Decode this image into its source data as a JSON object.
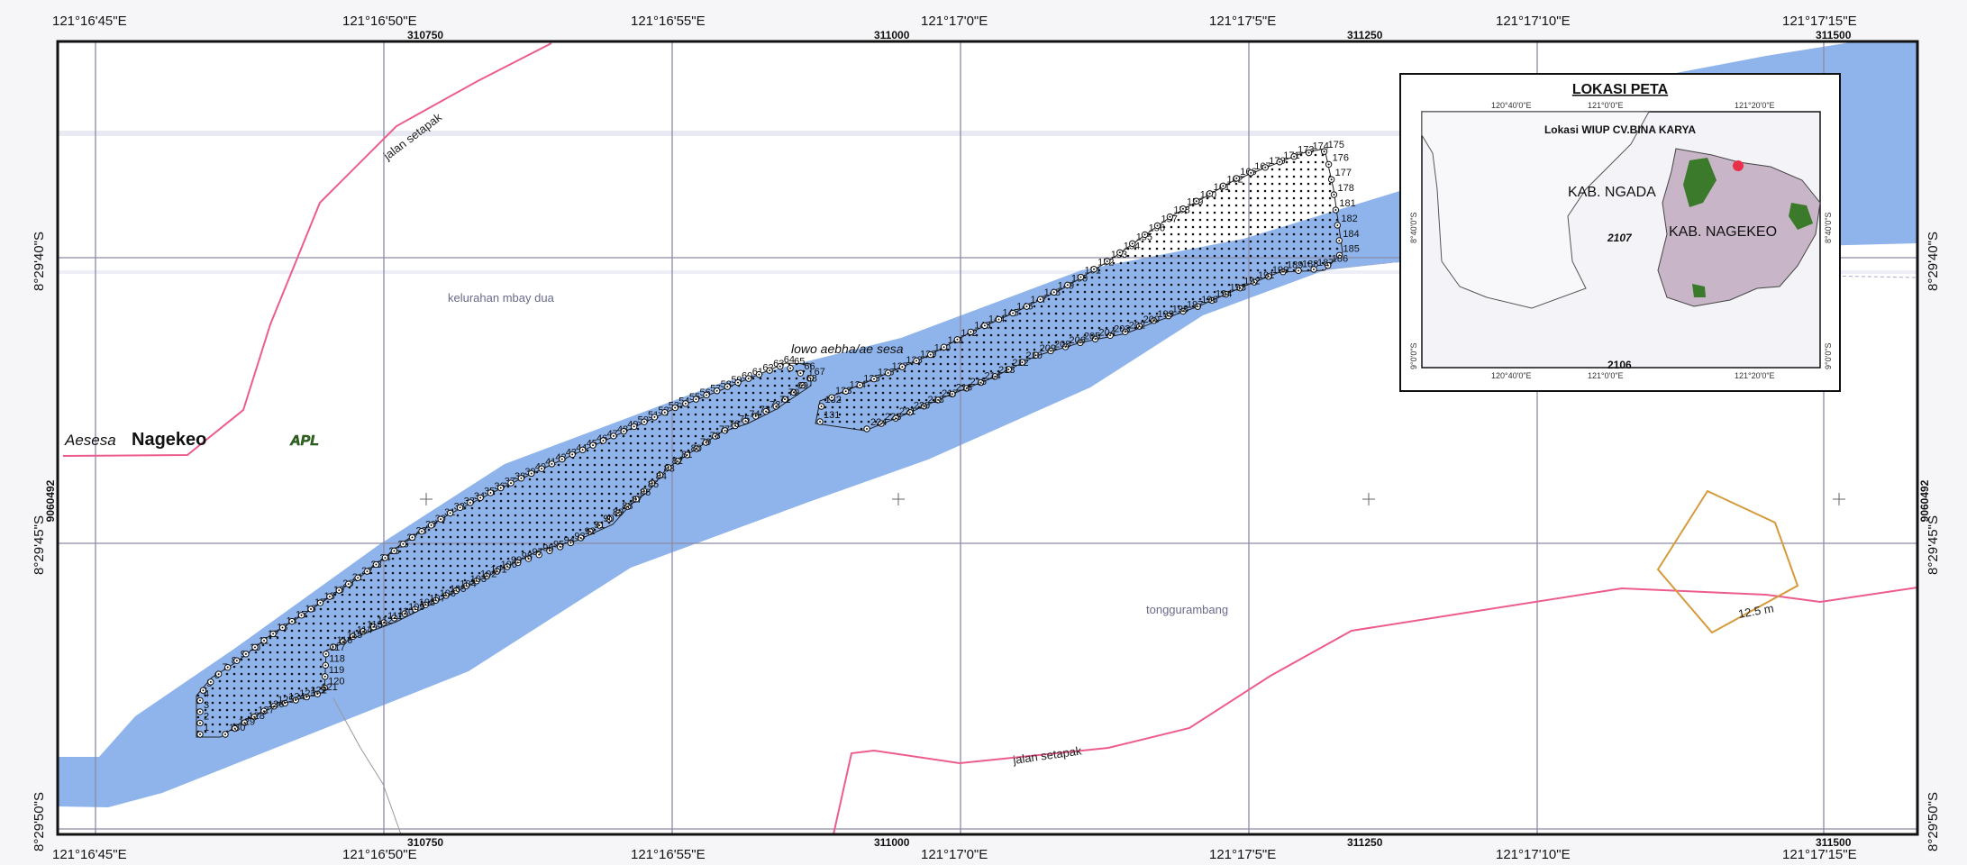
{
  "coords_top": [
    "121°16'45\"E",
    "121°16'50\"E",
    "121°16'55\"E",
    "121°17'0\"E",
    "121°17'5\"E",
    "121°17'10\"E",
    "121°17'15\"E"
  ],
  "coords_bottom": [
    "121°16'45\"E",
    "121°16'50\"E",
    "121°16'55\"E",
    "121°17'0\"E",
    "121°17'5\"E",
    "121°17'10\"E",
    "121°17'15\"E"
  ],
  "utm_top": [
    "310750",
    "311000",
    "311250",
    "311500"
  ],
  "utm_bottom": [
    "310750",
    "311000",
    "311250",
    "311500"
  ],
  "lat_labels": [
    "8°29'40\"S",
    "8°29'45\"S",
    "8°29'50\"S"
  ],
  "utm_side": "9060492",
  "labels": {
    "jalan_setapak_1": "jalan setapak",
    "jalan_setapak_2": "jalan setapak",
    "kelurahan": "kelurahan mbay dua",
    "aesesa": "Aesesa",
    "nagekeo": "Nagekeo",
    "apl": "APL",
    "tonggurambang": "tonggurambang",
    "river": "lowo aebha/ae sesa",
    "contour": "12.5 m"
  },
  "inset": {
    "title": "LOKASI PETA",
    "subtitle": "Lokasi WIUP CV.BINA KARYA",
    "kab_ngada": "KAB. NGADA",
    "kab_nagekeo": "KAB. NAGEKEO",
    "code_a": "2107",
    "code_b": "2106",
    "top_ticks": [
      "120°40'0\"E",
      "121°0'0\"E",
      "121°20'0\"E"
    ],
    "bottom_ticks": [
      "120°40'0\"E",
      "121°0'0\"E",
      "121°20'0\"E"
    ],
    "left_ticks": [
      "8°40'0\"S",
      "9°0'0\"S"
    ],
    "right_ticks": [
      "8°40'0\"S",
      "9°0'0\"S"
    ]
  },
  "points": [
    {
      "n": "1"
    },
    {
      "n": "2"
    },
    {
      "n": "3"
    },
    {
      "n": "4"
    },
    {
      "n": "5"
    },
    {
      "n": "6"
    },
    {
      "n": "7"
    },
    {
      "n": "8"
    },
    {
      "n": "9"
    },
    {
      "n": "10"
    },
    {
      "n": "11"
    },
    {
      "n": "12"
    },
    {
      "n": "13"
    },
    {
      "n": "14"
    },
    {
      "n": "15"
    },
    {
      "n": "16"
    },
    {
      "n": "17"
    },
    {
      "n": "18"
    },
    {
      "n": "19"
    },
    {
      "n": "20"
    },
    {
      "n": "21"
    },
    {
      "n": "22"
    },
    {
      "n": "23"
    },
    {
      "n": "24"
    },
    {
      "n": "25"
    },
    {
      "n": "26"
    },
    {
      "n": "27"
    },
    {
      "n": "28"
    },
    {
      "n": "29"
    },
    {
      "n": "30"
    },
    {
      "n": "31"
    },
    {
      "n": "32"
    },
    {
      "n": "33"
    },
    {
      "n": "34"
    },
    {
      "n": "35"
    },
    {
      "n": "36"
    },
    {
      "n": "37"
    },
    {
      "n": "38"
    },
    {
      "n": "39"
    },
    {
      "n": "40"
    },
    {
      "n": "41"
    },
    {
      "n": "42"
    },
    {
      "n": "43"
    },
    {
      "n": "44"
    },
    {
      "n": "45"
    },
    {
      "n": "46"
    },
    {
      "n": "47"
    },
    {
      "n": "48"
    },
    {
      "n": "49"
    },
    {
      "n": "50"
    },
    {
      "n": "51"
    },
    {
      "n": "52"
    },
    {
      "n": "53"
    },
    {
      "n": "54"
    },
    {
      "n": "55"
    },
    {
      "n": "56"
    },
    {
      "n": "57"
    },
    {
      "n": "58"
    },
    {
      "n": "59"
    },
    {
      "n": "60"
    },
    {
      "n": "61"
    },
    {
      "n": "62"
    },
    {
      "n": "63"
    },
    {
      "n": "64"
    },
    {
      "n": "65"
    },
    {
      "n": "66"
    },
    {
      "n": "67"
    },
    {
      "n": "68"
    },
    {
      "n": "69"
    },
    {
      "n": "70"
    },
    {
      "n": "71"
    },
    {
      "n": "72"
    },
    {
      "n": "73"
    },
    {
      "n": "74"
    },
    {
      "n": "75"
    },
    {
      "n": "76"
    },
    {
      "n": "77"
    },
    {
      "n": "78"
    },
    {
      "n": "79"
    },
    {
      "n": "80"
    },
    {
      "n": "81"
    },
    {
      "n": "82"
    },
    {
      "n": "83"
    },
    {
      "n": "84"
    },
    {
      "n": "85"
    },
    {
      "n": "86"
    },
    {
      "n": "87"
    },
    {
      "n": "88"
    },
    {
      "n": "89"
    },
    {
      "n": "90"
    },
    {
      "n": "91"
    },
    {
      "n": "92"
    },
    {
      "n": "93"
    },
    {
      "n": "94"
    },
    {
      "n": "95"
    },
    {
      "n": "96"
    },
    {
      "n": "97"
    },
    {
      "n": "98"
    },
    {
      "n": "99"
    },
    {
      "n": "100"
    },
    {
      "n": "101"
    },
    {
      "n": "102"
    },
    {
      "n": "103"
    },
    {
      "n": "104"
    },
    {
      "n": "105"
    },
    {
      "n": "106"
    },
    {
      "n": "107"
    },
    {
      "n": "108"
    },
    {
      "n": "109"
    },
    {
      "n": "110"
    },
    {
      "n": "111"
    },
    {
      "n": "112"
    },
    {
      "n": "113"
    },
    {
      "n": "114"
    },
    {
      "n": "115"
    },
    {
      "n": "116"
    },
    {
      "n": "117"
    },
    {
      "n": "118"
    },
    {
      "n": "119"
    },
    {
      "n": "120"
    },
    {
      "n": "121"
    },
    {
      "n": "122"
    },
    {
      "n": "123"
    },
    {
      "n": "124"
    },
    {
      "n": "125"
    },
    {
      "n": "126"
    },
    {
      "n": "127"
    },
    {
      "n": "128"
    },
    {
      "n": "129"
    },
    {
      "n": "130"
    },
    {
      "n": "131"
    },
    {
      "n": "132"
    },
    {
      "n": "133"
    },
    {
      "n": "134"
    },
    {
      "n": "135"
    },
    {
      "n": "136"
    },
    {
      "n": "137"
    },
    {
      "n": "138"
    },
    {
      "n": "139"
    },
    {
      "n": "140"
    },
    {
      "n": "141"
    },
    {
      "n": "142"
    },
    {
      "n": "143"
    },
    {
      "n": "144"
    },
    {
      "n": "145"
    },
    {
      "n": "146"
    },
    {
      "n": "147"
    },
    {
      "n": "148"
    },
    {
      "n": "149"
    },
    {
      "n": "150"
    },
    {
      "n": "151"
    },
    {
      "n": "152"
    },
    {
      "n": "153"
    },
    {
      "n": "154"
    },
    {
      "n": "155"
    },
    {
      "n": "156"
    },
    {
      "n": "157"
    },
    {
      "n": "158"
    },
    {
      "n": "159"
    },
    {
      "n": "160"
    },
    {
      "n": "161"
    },
    {
      "n": "162"
    },
    {
      "n": "166"
    },
    {
      "n": "167"
    },
    {
      "n": "170"
    },
    {
      "n": "171"
    },
    {
      "n": "173"
    },
    {
      "n": "174"
    },
    {
      "n": "175"
    },
    {
      "n": "176"
    },
    {
      "n": "177"
    },
    {
      "n": "178"
    },
    {
      "n": "181"
    },
    {
      "n": "182"
    },
    {
      "n": "184"
    },
    {
      "n": "185"
    },
    {
      "n": "186"
    },
    {
      "n": "187"
    },
    {
      "n": "188"
    },
    {
      "n": "189"
    },
    {
      "n": "190"
    },
    {
      "n": "191"
    },
    {
      "n": "192"
    },
    {
      "n": "193"
    },
    {
      "n": "194"
    },
    {
      "n": "196"
    },
    {
      "n": "197"
    },
    {
      "n": "198"
    },
    {
      "n": "199"
    },
    {
      "n": "200"
    },
    {
      "n": "202"
    },
    {
      "n": "203"
    },
    {
      "n": "204"
    },
    {
      "n": "205"
    },
    {
      "n": "206"
    },
    {
      "n": "208"
    },
    {
      "n": "209"
    },
    {
      "n": "210"
    },
    {
      "n": "212"
    },
    {
      "n": "213"
    },
    {
      "n": "214"
    },
    {
      "n": "215"
    },
    {
      "n": "216"
    },
    {
      "n": "217"
    },
    {
      "n": "218"
    },
    {
      "n": "220"
    },
    {
      "n": "221"
    },
    {
      "n": "223"
    },
    {
      "n": "224"
    }
  ],
  "colors": {
    "river": "#8fb4ec",
    "road": "#ec5d8c",
    "grid": "#8a8aa6",
    "contour": "#d49a3c",
    "frame": "#111111",
    "apl": "#2f6d1e",
    "inset_land": "#c8b6c8",
    "inset_forest": "#3a7a2a",
    "inset_marker": "#e8304a"
  }
}
